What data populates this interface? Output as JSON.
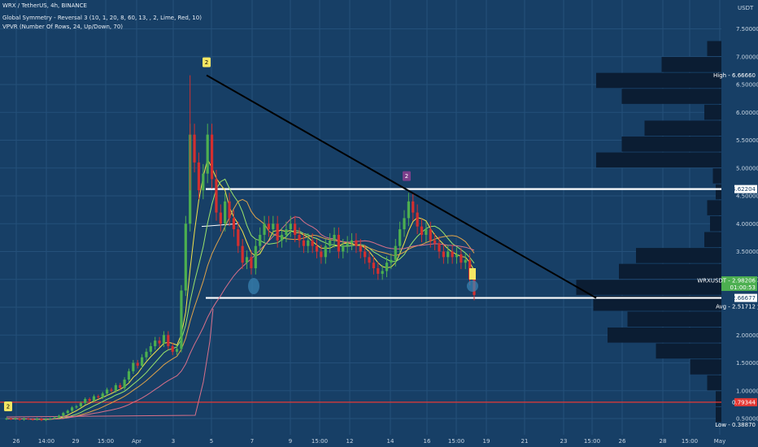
{
  "header": {
    "symbol_line": "WRX / TetherUS, 4h, BINANCE",
    "indicator_1": "Global Symmetry - Reversal 3 (10, 1, 20, 8, 60, 13, , 2, Lime, Red, 10)",
    "indicator_2": "VPVR (Number Of Rows, 24, Up/Down, 70)"
  },
  "colors": {
    "background": "#173f66",
    "grid": "#24507a",
    "up_candle": "#4caf50",
    "down_candle": "#d32f2f",
    "trendline": "#000000",
    "level_line": "#ffffff",
    "red_level": "#e53935",
    "volume_profile": "#0b1d33"
  },
  "chart_data": {
    "type": "candlestick",
    "price_axis": {
      "unit": "USDT",
      "ticks": [
        "7.50000",
        "7.00000",
        "6.50000",
        "6.00000",
        "5.50000",
        "5.00000",
        "4.50000",
        "4.00000",
        "3.50000",
        "3.00000",
        "2.50000",
        "2.00000",
        "1.50000",
        "1.00000",
        "0.50000"
      ],
      "range": [
        0.3,
        7.55
      ]
    },
    "time_axis": {
      "ticks": [
        "26",
        "14:00",
        "29",
        "15:00",
        "Apr",
        "3",
        "5",
        "7",
        "9",
        "15:00",
        "12",
        "14",
        "16",
        "15:00",
        "19",
        "21",
        "23",
        "15:00",
        "26",
        "28",
        "15:00",
        "May"
      ]
    },
    "price_labels": [
      {
        "name": "High",
        "value": "6.66660"
      },
      {
        "name": "",
        "value": "4.62204"
      },
      {
        "name": "WRXUSDT",
        "value": "2.98206",
        "sub": "01:00:53"
      },
      {
        "name": "",
        "value": "2.66677"
      },
      {
        "name": "Avg",
        "value": "2.51712"
      },
      {
        "name": "",
        "value": "0.79344"
      },
      {
        "name": "Low",
        "value": "0.38870"
      }
    ],
    "levels": [
      {
        "price": 4.62204,
        "style": "white"
      },
      {
        "price": 2.66677,
        "style": "white"
      },
      {
        "price": 0.79344,
        "style": "red"
      }
    ],
    "trendline": {
      "from_price": 6.6666,
      "to_price": 2.66677
    },
    "markers": [
      {
        "label": "2",
        "price": 6.6666,
        "color": "#f5e663"
      },
      {
        "label": "2",
        "price": 4.62204,
        "color": "#7b3f8a"
      },
      {
        "label": "2",
        "price": 0.4,
        "color": "#f5e663"
      }
    ],
    "closes": [
      0.5,
      0.49,
      0.5,
      0.48,
      0.5,
      0.49,
      0.48,
      0.5,
      0.47,
      0.49,
      0.5,
      0.52,
      0.55,
      0.6,
      0.64,
      0.7,
      0.72,
      0.78,
      0.85,
      0.82,
      0.9,
      0.88,
      0.95,
      1.02,
      1.0,
      1.1,
      1.05,
      1.2,
      1.35,
      1.5,
      1.45,
      1.6,
      1.7,
      1.8,
      1.9,
      1.85,
      2.0,
      1.8,
      1.7,
      1.75,
      2.8,
      4.0,
      5.6,
      5.1,
      4.6,
      4.9,
      5.6,
      4.8,
      4.2,
      4.0,
      4.4,
      4.1,
      3.9,
      3.6,
      3.3,
      3.4,
      3.2,
      3.6,
      3.8,
      4.0,
      3.9,
      4.0,
      3.7,
      3.8,
      3.9,
      4.0,
      3.8,
      3.7,
      3.6,
      3.7,
      3.6,
      3.5,
      3.4,
      3.6,
      3.7,
      3.8,
      3.5,
      3.6,
      3.65,
      3.7,
      3.6,
      3.5,
      3.4,
      3.3,
      3.2,
      3.1,
      3.15,
      3.3,
      3.35,
      3.6,
      3.9,
      4.1,
      4.4,
      4.2,
      3.95,
      3.8,
      3.9,
      3.7,
      3.65,
      3.5,
      3.4,
      3.5,
      3.4,
      3.45,
      3.3,
      3.35,
      3.0,
      2.72
    ],
    "volume_profile": [
      0.02,
      0.02,
      0.05,
      0.11,
      0.23,
      0.4,
      0.33,
      0.45,
      0.51,
      0.36,
      0.3,
      0.06,
      0.04,
      0.05,
      0.02,
      0.03,
      0.44,
      0.35,
      0.27,
      0.06,
      0.35,
      0.44,
      0.21,
      0.05
    ]
  }
}
